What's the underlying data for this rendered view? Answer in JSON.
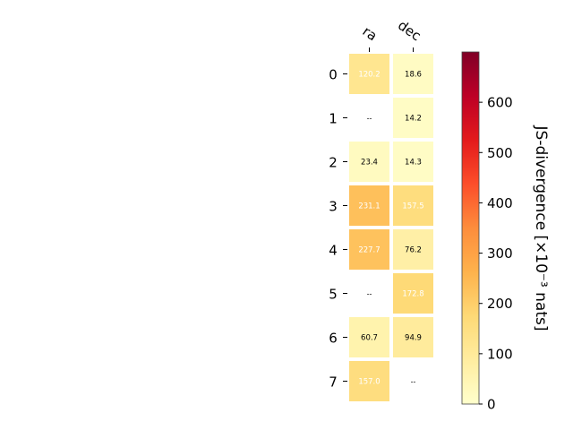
{
  "chart_data": {
    "type": "heatmap",
    "columns": [
      "ra",
      "dec"
    ],
    "rows": [
      "0",
      "1",
      "2",
      "3",
      "4",
      "5",
      "6",
      "7"
    ],
    "values": [
      [
        120.2,
        18.6
      ],
      [
        null,
        14.2
      ],
      [
        23.4,
        14.3
      ],
      [
        231.1,
        157.5
      ],
      [
        227.7,
        76.2
      ],
      [
        null,
        172.8
      ],
      [
        60.7,
        94.9
      ],
      [
        157.0,
        null
      ]
    ],
    "cell_labels": [
      [
        "120.2",
        "18.6"
      ],
      [
        "--",
        "14.2"
      ],
      [
        "23.4",
        "14.3"
      ],
      [
        "231.1",
        "157.5"
      ],
      [
        "227.7",
        "76.2"
      ],
      [
        "--",
        "172.8"
      ],
      [
        "60.7",
        "94.9"
      ],
      [
        "157.0",
        "--"
      ]
    ],
    "colorbar": {
      "label": "JS-divergence [×10⁻³ nats]",
      "range": [
        0,
        700
      ],
      "ticks": [
        "0",
        "100",
        "200",
        "300",
        "400",
        "500",
        "600"
      ],
      "colormap": "YlOrRd"
    },
    "grid": false
  }
}
